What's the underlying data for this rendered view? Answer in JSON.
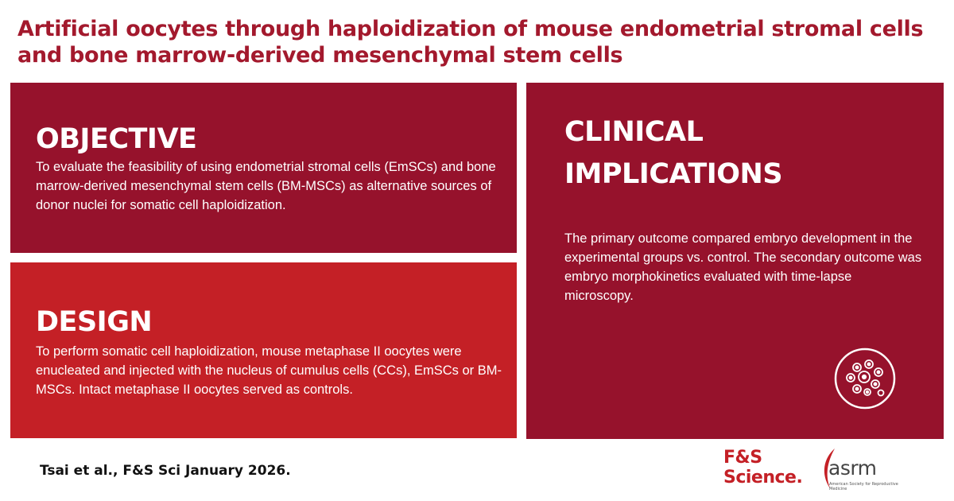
{
  "title": "Artificial oocytes through haploidization of mouse endometrial stromal cells and bone marrow-derived mesenchymal stem cells",
  "objective": {
    "heading": "OBJECTIVE",
    "text": "To evaluate the feasibility of using endometrial stromal cells (EmSCs) and bone marrow-derived mesenchymal stem cells (BM-MSCs) as alternative sources of donor nuclei for somatic cell haploidization."
  },
  "design": {
    "heading": "DESIGN",
    "text": "To perform somatic cell haploidization, mouse metaphase II oocytes were enucleated and injected with the nucleus of cumulus cells (CCs), EmSCs or BM-MSCs. Intact metaphase II oocytes served as controls."
  },
  "clinical": {
    "heading_line1": "CLINICAL",
    "heading_line2": "IMPLICATIONS",
    "text": "The primary outcome compared embryo development in the experimental groups vs. control. The secondary outcome was embryo morphokinetics evaluated with time-lapse microscopy.",
    "icon": "cells-icon"
  },
  "citation": "Tsai et al., F&S Sci January 2026.",
  "logos": {
    "fs_line1": "F&S",
    "fs_line2": "Science.",
    "asrm_word": "asrm",
    "asrm_subtitle": "American Society for Reproductive Medicine"
  },
  "colors": {
    "title": "#a3192d",
    "panel_dark": "#96122c",
    "panel_bright": "#c42026"
  }
}
